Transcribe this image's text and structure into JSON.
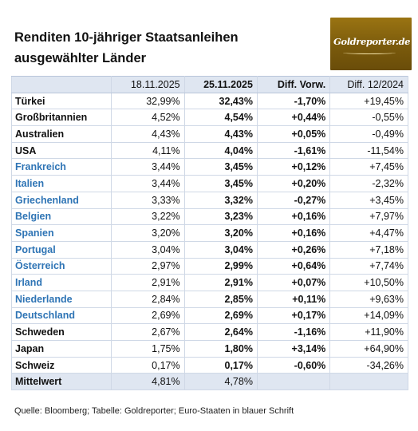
{
  "title_line1": "Renditen 10-jähriger Staatsanleihen",
  "title_line2": "ausgewählter Länder",
  "logo_text": "Goldreporter.de",
  "columns": [
    "",
    "18.11.2025",
    "25.11.2025",
    "Diff. Vorw.",
    "Diff. 12/2024"
  ],
  "rows": [
    {
      "country": "Türkei",
      "v1": "32,99%",
      "v2": "32,43%",
      "d1": "-1,70%",
      "d2": "+19,45%",
      "euro": false
    },
    {
      "country": "Großbritannien",
      "v1": "4,52%",
      "v2": "4,54%",
      "d1": "+0,44%",
      "d2": "-0,55%",
      "euro": false
    },
    {
      "country": "Australien",
      "v1": "4,43%",
      "v2": "4,43%",
      "d1": "+0,05%",
      "d2": "-0,49%",
      "euro": false
    },
    {
      "country": "USA",
      "v1": "4,11%",
      "v2": "4,04%",
      "d1": "-1,61%",
      "d2": "-11,54%",
      "euro": false
    },
    {
      "country": "Frankreich",
      "v1": "3,44%",
      "v2": "3,45%",
      "d1": "+0,12%",
      "d2": "+7,45%",
      "euro": true
    },
    {
      "country": "Italien",
      "v1": "3,44%",
      "v2": "3,45%",
      "d1": "+0,20%",
      "d2": "-2,32%",
      "euro": true
    },
    {
      "country": "Griechenland",
      "v1": "3,33%",
      "v2": "3,32%",
      "d1": "-0,27%",
      "d2": "+3,45%",
      "euro": true
    },
    {
      "country": "Belgien",
      "v1": "3,22%",
      "v2": "3,23%",
      "d1": "+0,16%",
      "d2": "+7,97%",
      "euro": true
    },
    {
      "country": "Spanien",
      "v1": "3,20%",
      "v2": "3,20%",
      "d1": "+0,16%",
      "d2": "+4,47%",
      "euro": true
    },
    {
      "country": "Portugal",
      "v1": "3,04%",
      "v2": "3,04%",
      "d1": "+0,26%",
      "d2": "+7,18%",
      "euro": true
    },
    {
      "country": "Österreich",
      "v1": "2,97%",
      "v2": "2,99%",
      "d1": "+0,64%",
      "d2": "+7,74%",
      "euro": true
    },
    {
      "country": "Irland",
      "v1": "2,91%",
      "v2": "2,91%",
      "d1": "+0,07%",
      "d2": "+10,50%",
      "euro": true
    },
    {
      "country": "Niederlande",
      "v1": "2,84%",
      "v2": "2,85%",
      "d1": "+0,11%",
      "d2": "+9,63%",
      "euro": true
    },
    {
      "country": "Deutschland",
      "v1": "2,69%",
      "v2": "2,69%",
      "d1": "+0,17%",
      "d2": "+14,09%",
      "euro": true
    },
    {
      "country": "Schweden",
      "v1": "2,67%",
      "v2": "2,64%",
      "d1": "-1,16%",
      "d2": "+11,90%",
      "euro": false
    },
    {
      "country": "Japan",
      "v1": "1,75%",
      "v2": "1,80%",
      "d1": "+3,14%",
      "d2": "+64,90%",
      "euro": false
    },
    {
      "country": "Schweiz",
      "v1": "0,17%",
      "v2": "0,17%",
      "d1": "-0,60%",
      "d2": "-34,26%",
      "euro": false
    }
  ],
  "average": {
    "label": "Mittelwert",
    "v1": "4,81%",
    "v2": "4,78%"
  },
  "source": "Quelle: Bloomberg; Tabelle: Goldreporter; Euro-Staaten in blauer Schrift",
  "colors": {
    "euro_blue": "#2e74b5",
    "header_fill": "#dfe6f1",
    "logo_gold": "#8a6610"
  }
}
